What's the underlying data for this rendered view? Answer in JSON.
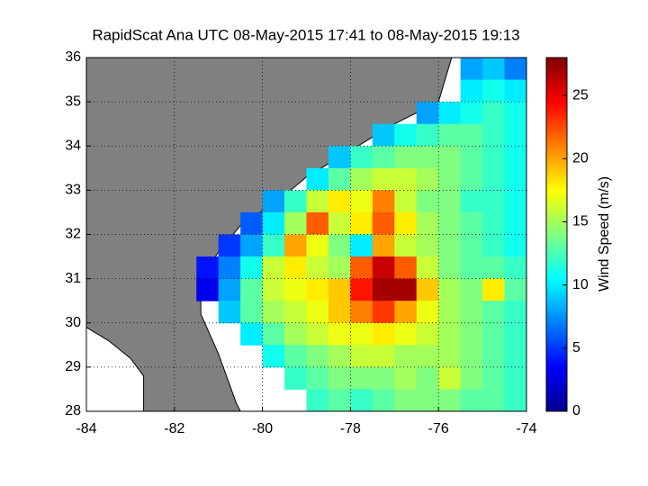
{
  "chart_data": {
    "type": "heatmap",
    "title": "RapidScat Ana UTC 08-May-2015 17:41 to 08-May-2015 19:13",
    "xlim": [
      -84,
      -74
    ],
    "xticks": [
      -84,
      -82,
      -80,
      -78,
      -76,
      -74
    ],
    "ylim": [
      28,
      36
    ],
    "yticks": [
      28,
      29,
      30,
      31,
      32,
      33,
      34,
      35,
      36
    ],
    "grid": true,
    "colormap": "jet",
    "clim": [
      0,
      28
    ],
    "cticks": [
      0,
      5,
      10,
      15,
      20,
      25
    ],
    "colorbar_label": "Wind Speed (m/s)",
    "values": [
      [
        null,
        null,
        null,
        null,
        null,
        null,
        null,
        null,
        null,
        null,
        null,
        null,
        null,
        null,
        null,
        null,
        null,
        8,
        9,
        7
      ],
      [
        null,
        null,
        null,
        null,
        null,
        null,
        null,
        null,
        null,
        null,
        null,
        null,
        null,
        null,
        null,
        null,
        null,
        10,
        11,
        10
      ],
      [
        null,
        null,
        null,
        null,
        null,
        null,
        null,
        null,
        null,
        null,
        null,
        null,
        null,
        null,
        null,
        8,
        10,
        11,
        12,
        11
      ],
      [
        null,
        null,
        null,
        null,
        null,
        null,
        null,
        null,
        null,
        null,
        null,
        null,
        null,
        9,
        11,
        12,
        13,
        13,
        12,
        11
      ],
      [
        null,
        null,
        null,
        null,
        null,
        null,
        null,
        null,
        null,
        null,
        null,
        9,
        12,
        13,
        14,
        14,
        14,
        13,
        12,
        11
      ],
      [
        null,
        null,
        null,
        null,
        null,
        null,
        null,
        null,
        null,
        null,
        10,
        13,
        15,
        16,
        16,
        15,
        14,
        13,
        12,
        11
      ],
      [
        null,
        null,
        null,
        null,
        null,
        null,
        null,
        null,
        8,
        12,
        16,
        18,
        17,
        21,
        16,
        14,
        14,
        12,
        12,
        11
      ],
      [
        null,
        null,
        null,
        null,
        null,
        null,
        null,
        6,
        10,
        15,
        22,
        16,
        18,
        22,
        18,
        15,
        14,
        13,
        12,
        11
      ],
      [
        null,
        null,
        null,
        null,
        null,
        null,
        5,
        8,
        12,
        20,
        17,
        14,
        10,
        20,
        16,
        15,
        14,
        13,
        12,
        11
      ],
      [
        null,
        null,
        null,
        null,
        null,
        4,
        7,
        11,
        16,
        18,
        16,
        15,
        22,
        26,
        22,
        16,
        14,
        13,
        13,
        12
      ],
      [
        null,
        null,
        null,
        null,
        null,
        3,
        8,
        13,
        16,
        17,
        18,
        19,
        24,
        27,
        27,
        19,
        15,
        14,
        18,
        13
      ],
      [
        null,
        null,
        null,
        null,
        null,
        null,
        9,
        13,
        15,
        16,
        17,
        19,
        21,
        23,
        20,
        17,
        15,
        14,
        13,
        12
      ],
      [
        null,
        null,
        null,
        null,
        null,
        null,
        null,
        10,
        13,
        15,
        16,
        17,
        17,
        18,
        17,
        16,
        15,
        14,
        13,
        12
      ],
      [
        null,
        null,
        null,
        null,
        null,
        null,
        null,
        null,
        11,
        13,
        14,
        15,
        16,
        16,
        15,
        15,
        15,
        14,
        13,
        12
      ],
      [
        null,
        null,
        null,
        null,
        null,
        null,
        null,
        null,
        null,
        12,
        13,
        14,
        14,
        14,
        15,
        14,
        16,
        14,
        13,
        12
      ],
      [
        null,
        null,
        null,
        null,
        null,
        null,
        null,
        null,
        null,
        null,
        12,
        13,
        12,
        13,
        14,
        14,
        14,
        13,
        13,
        12
      ]
    ]
  }
}
